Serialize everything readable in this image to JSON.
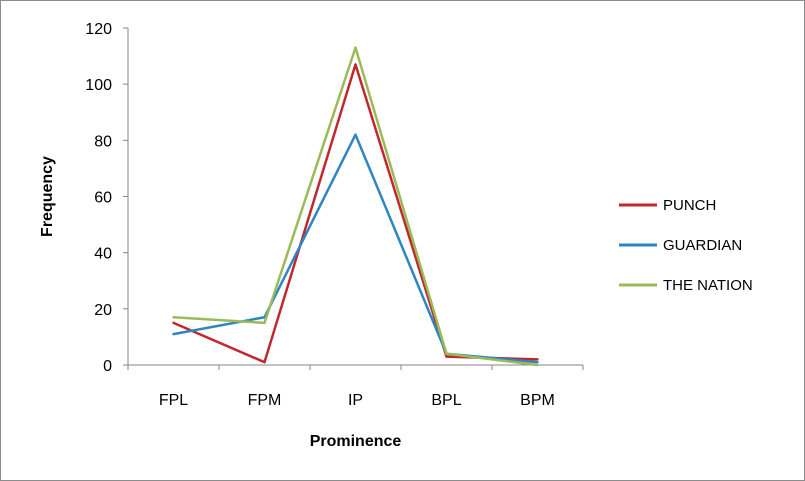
{
  "chart_data": {
    "type": "line",
    "title": "",
    "xlabel": "Prominence",
    "ylabel": "Frequency",
    "categories": [
      "FPL",
      "FPM",
      "IP",
      "BPL",
      "BPM"
    ],
    "ylim": [
      0,
      120
    ],
    "yticks": [
      0,
      20,
      40,
      60,
      80,
      100,
      120
    ],
    "grid": false,
    "legend_position": "right",
    "series": [
      {
        "name": "PUNCH",
        "color": "#c0282e",
        "values": [
          15,
          1,
          107,
          3,
          2
        ]
      },
      {
        "name": "GUARDIAN",
        "color": "#2e86c1",
        "values": [
          11,
          17,
          82,
          4,
          1
        ]
      },
      {
        "name": "THE NATION",
        "color": "#9bbb59",
        "values": [
          17,
          15,
          113,
          4,
          0
        ]
      }
    ]
  }
}
